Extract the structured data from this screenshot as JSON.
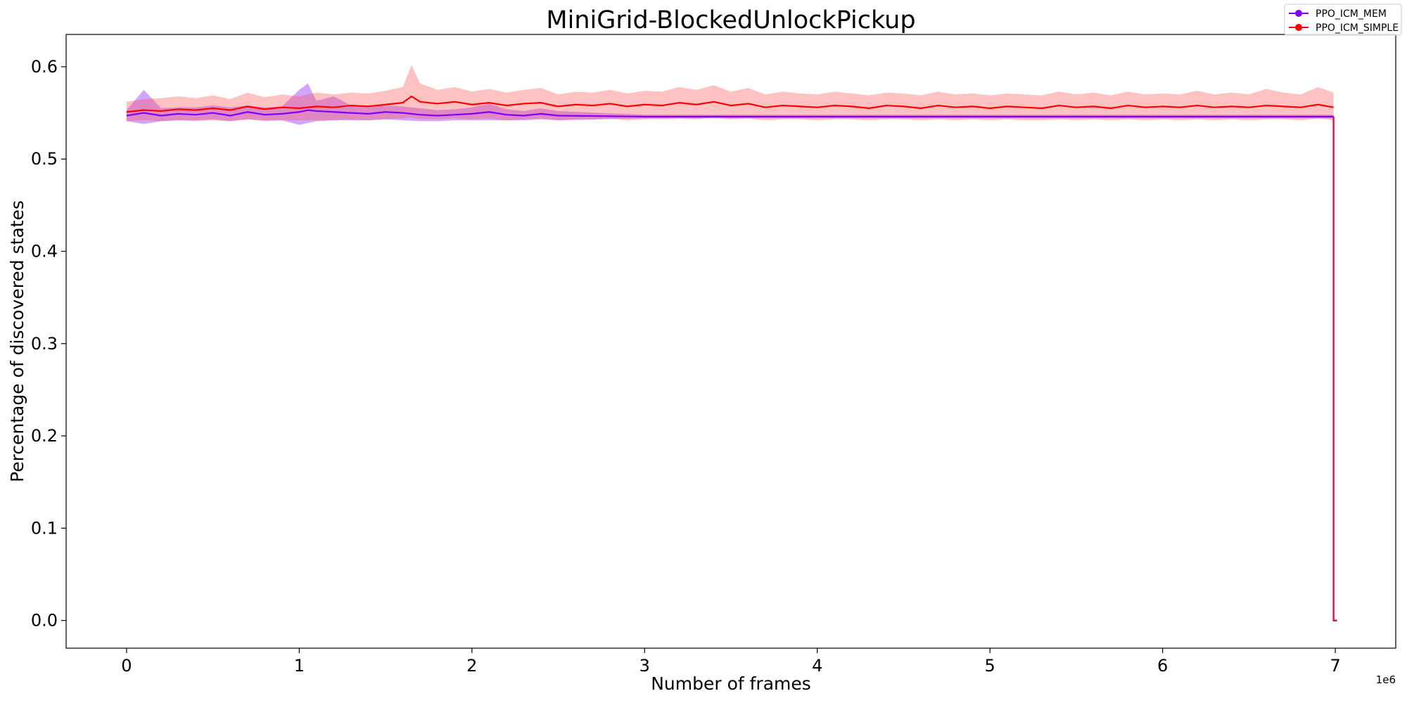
{
  "chart_data": {
    "type": "line",
    "title": "MiniGrid-BlockedUnlockPickup",
    "xlabel": "Number of frames",
    "ylabel": "Percentage of discovered states",
    "x_offset_label": "1e6",
    "xlim": [
      -0.35,
      7.35
    ],
    "ylim": [
      -0.03,
      0.635
    ],
    "x_ticks": [
      0,
      1,
      2,
      3,
      4,
      5,
      6,
      7
    ],
    "x_tick_labels": [
      "0",
      "1",
      "2",
      "3",
      "4",
      "5",
      "6",
      "7"
    ],
    "y_ticks": [
      0.0,
      0.1,
      0.2,
      0.3,
      0.4,
      0.5,
      0.6
    ],
    "y_tick_labels": [
      "0.0",
      "0.1",
      "0.2",
      "0.3",
      "0.4",
      "0.5",
      "0.6"
    ],
    "grid": false,
    "legend_position": "top-right",
    "series": [
      {
        "name": "PPO_ICM_MEM",
        "color": "#7f00ff",
        "band_color": "#7f00ff",
        "x": [
          0,
          0.1,
          0.2,
          0.3,
          0.4,
          0.5,
          0.6,
          0.7,
          0.8,
          0.9,
          1.0,
          1.05,
          1.1,
          1.2,
          1.3,
          1.4,
          1.5,
          1.6,
          1.7,
          1.8,
          1.9,
          2.0,
          2.1,
          2.2,
          2.3,
          2.4,
          2.5,
          3.0,
          3.5,
          4.0,
          4.5,
          5.0,
          5.5,
          6.0,
          6.5,
          6.99
        ],
        "y": [
          0.547,
          0.55,
          0.547,
          0.549,
          0.548,
          0.55,
          0.547,
          0.551,
          0.548,
          0.549,
          0.551,
          0.553,
          0.552,
          0.551,
          0.55,
          0.549,
          0.551,
          0.55,
          0.548,
          0.547,
          0.548,
          0.549,
          0.551,
          0.548,
          0.547,
          0.549,
          0.547,
          0.546,
          0.546,
          0.546,
          0.546,
          0.546,
          0.546,
          0.546,
          0.546,
          0.546
        ],
        "y_upper": [
          0.553,
          0.575,
          0.555,
          0.556,
          0.556,
          0.558,
          0.556,
          0.558,
          0.556,
          0.557,
          0.575,
          0.582,
          0.563,
          0.568,
          0.558,
          0.556,
          0.558,
          0.557,
          0.555,
          0.553,
          0.554,
          0.556,
          0.56,
          0.554,
          0.552,
          0.555,
          0.552,
          0.548,
          0.548,
          0.548,
          0.548,
          0.548,
          0.548,
          0.548,
          0.548,
          0.548
        ],
        "y_lower": [
          0.541,
          0.538,
          0.541,
          0.542,
          0.542,
          0.543,
          0.541,
          0.543,
          0.542,
          0.542,
          0.537,
          0.539,
          0.541,
          0.542,
          0.542,
          0.542,
          0.543,
          0.542,
          0.541,
          0.541,
          0.542,
          0.542,
          0.542,
          0.542,
          0.542,
          0.543,
          0.542,
          0.544,
          0.544,
          0.544,
          0.544,
          0.544,
          0.544,
          0.544,
          0.544,
          0.544
        ]
      },
      {
        "name": "PPO_ICM_SIMPLE",
        "color": "#ff0000",
        "band_color": "#ff5050",
        "x": [
          0,
          0.1,
          0.2,
          0.3,
          0.4,
          0.5,
          0.6,
          0.7,
          0.8,
          0.9,
          1.0,
          1.1,
          1.2,
          1.3,
          1.4,
          1.5,
          1.6,
          1.65,
          1.7,
          1.8,
          1.9,
          2.0,
          2.1,
          2.2,
          2.3,
          2.4,
          2.5,
          2.6,
          2.7,
          2.8,
          2.9,
          3.0,
          3.1,
          3.2,
          3.3,
          3.4,
          3.5,
          3.6,
          3.7,
          3.8,
          3.9,
          4.0,
          4.1,
          4.2,
          4.3,
          4.4,
          4.5,
          4.6,
          4.7,
          4.8,
          4.9,
          5.0,
          5.1,
          5.2,
          5.3,
          5.4,
          5.5,
          5.6,
          5.7,
          5.8,
          5.9,
          6.0,
          6.1,
          6.2,
          6.3,
          6.4,
          6.5,
          6.6,
          6.7,
          6.8,
          6.9,
          6.99
        ],
        "y": [
          0.551,
          0.553,
          0.552,
          0.554,
          0.553,
          0.555,
          0.553,
          0.557,
          0.554,
          0.556,
          0.555,
          0.557,
          0.556,
          0.558,
          0.557,
          0.559,
          0.561,
          0.568,
          0.562,
          0.56,
          0.562,
          0.559,
          0.561,
          0.558,
          0.56,
          0.561,
          0.557,
          0.559,
          0.558,
          0.56,
          0.557,
          0.559,
          0.558,
          0.561,
          0.559,
          0.562,
          0.558,
          0.56,
          0.556,
          0.558,
          0.557,
          0.556,
          0.558,
          0.557,
          0.555,
          0.558,
          0.557,
          0.555,
          0.558,
          0.556,
          0.557,
          0.555,
          0.557,
          0.556,
          0.555,
          0.558,
          0.556,
          0.557,
          0.555,
          0.558,
          0.556,
          0.557,
          0.556,
          0.558,
          0.556,
          0.557,
          0.556,
          0.558,
          0.557,
          0.556,
          0.559,
          0.556
        ],
        "y_upper": [
          0.562,
          0.565,
          0.566,
          0.568,
          0.566,
          0.569,
          0.565,
          0.572,
          0.567,
          0.57,
          0.568,
          0.572,
          0.57,
          0.572,
          0.571,
          0.574,
          0.578,
          0.602,
          0.582,
          0.575,
          0.578,
          0.573,
          0.576,
          0.572,
          0.575,
          0.577,
          0.57,
          0.573,
          0.572,
          0.575,
          0.571,
          0.574,
          0.573,
          0.578,
          0.575,
          0.58,
          0.573,
          0.577,
          0.57,
          0.573,
          0.571,
          0.57,
          0.573,
          0.571,
          0.569,
          0.572,
          0.571,
          0.569,
          0.573,
          0.57,
          0.571,
          0.569,
          0.571,
          0.57,
          0.569,
          0.573,
          0.57,
          0.572,
          0.569,
          0.573,
          0.57,
          0.571,
          0.57,
          0.574,
          0.57,
          0.572,
          0.57,
          0.576,
          0.572,
          0.57,
          0.578,
          0.572
        ],
        "y_lower": [
          0.541,
          0.542,
          0.541,
          0.542,
          0.541,
          0.542,
          0.541,
          0.543,
          0.541,
          0.542,
          0.542,
          0.542,
          0.542,
          0.543,
          0.542,
          0.543,
          0.544,
          0.545,
          0.543,
          0.543,
          0.544,
          0.543,
          0.544,
          0.542,
          0.543,
          0.544,
          0.542,
          0.543,
          0.543,
          0.544,
          0.542,
          0.543,
          0.543,
          0.544,
          0.543,
          0.545,
          0.543,
          0.544,
          0.542,
          0.543,
          0.543,
          0.542,
          0.543,
          0.543,
          0.542,
          0.543,
          0.543,
          0.542,
          0.543,
          0.542,
          0.543,
          0.542,
          0.543,
          0.542,
          0.542,
          0.543,
          0.542,
          0.543,
          0.542,
          0.543,
          0.542,
          0.543,
          0.542,
          0.543,
          0.542,
          0.543,
          0.542,
          0.543,
          0.543,
          0.542,
          0.544,
          0.542
        ]
      }
    ],
    "end_drop": {
      "x": 6.99,
      "y_from": 0.546,
      "y_to": 0.0,
      "x_tail_end": 7.01
    }
  }
}
